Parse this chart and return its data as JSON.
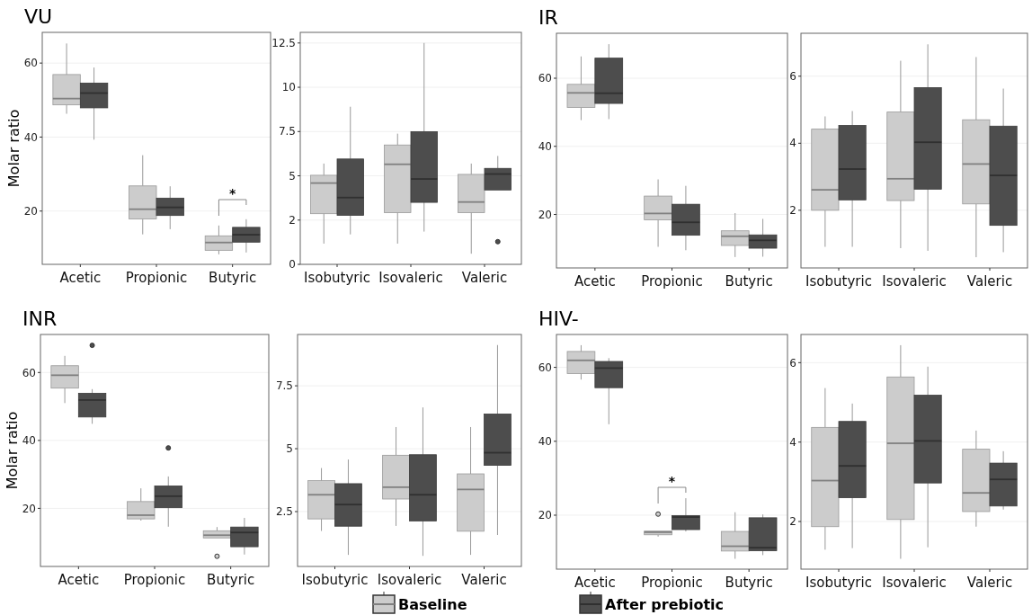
{
  "chart_data": [
    {
      "type": "box",
      "title": "VU",
      "ylabel": "Molar ratio",
      "categories": [
        "Acetic",
        "Propionic",
        "Butyric"
      ],
      "ylim": [
        5.6,
        68.3
      ],
      "yticks": [
        20,
        40,
        60
      ],
      "grid": "y",
      "legend": "bottom",
      "annotations": [
        "*"
      ],
      "series": [
        {
          "name": "Baseline",
          "color": "#cccccc",
          "boxes": [
            {
              "low": 46.3,
              "q1": 48.7,
              "median": 50.4,
              "q3": 56.9,
              "high": 65.3
            },
            {
              "low": 13.7,
              "q1": 17.9,
              "median": 20.5,
              "q3": 26.8,
              "high": 35.1
            },
            {
              "low": 8.3,
              "q1": 9.4,
              "median": 11.5,
              "q3": 13.3,
              "high": 16.1
            }
          ]
        },
        {
          "name": "After prebiotic",
          "color": "#4d4d4d",
          "boxes": [
            {
              "low": 39.3,
              "q1": 47.9,
              "median": 51.9,
              "q3": 54.6,
              "high": 58.8
            },
            {
              "low": 15.1,
              "q1": 18.8,
              "median": 21,
              "q3": 23.5,
              "high": 26.7
            },
            {
              "low": 8.8,
              "q1": 11.6,
              "median": 13.6,
              "q3": 15.6,
              "high": 17.8
            }
          ]
        }
      ]
    },
    {
      "type": "box",
      "categories": [
        "Isobutyric",
        "Isovaleric",
        "Valeric"
      ],
      "ylim": [
        0,
        13.1
      ],
      "yticks": [
        0,
        {
          "value": 2.5,
          "label": "2"
        },
        5,
        7.5,
        10,
        12.5
      ],
      "grid": "y",
      "series": [
        {
          "color": "#cccccc",
          "boxes": [
            {
              "low": 1.17,
              "q1": 2.86,
              "median": 4.59,
              "q3": 5.03,
              "high": 5.69
            },
            {
              "low": 1.17,
              "q1": 2.92,
              "median": 5.65,
              "q3": 6.74,
              "high": 7.38
            },
            {
              "low": 0.6,
              "q1": 2.92,
              "median": 3.52,
              "q3": 5.08,
              "high": 5.69
            }
          ]
        },
        {
          "color": "#4d4d4d",
          "boxes": [
            {
              "low": 1.69,
              "q1": 2.77,
              "median": 3.77,
              "q3": 5.95,
              "high": 8.9
            },
            {
              "low": 1.85,
              "q1": 3.5,
              "median": 4.82,
              "q3": 7.49,
              "high": 12.5
            },
            {
              "low": 4.14,
              "q1": 4.2,
              "median": 5.1,
              "q3": 5.42,
              "high": 6.12,
              "outliers": [
                1.28
              ]
            }
          ]
        }
      ]
    },
    {
      "type": "box",
      "title": "IR",
      "categories": [
        "Acetic",
        "Propionic",
        "Butyric"
      ],
      "ylim": [
        4.3,
        73.2
      ],
      "yticks": [
        20,
        40,
        60
      ],
      "grid": "y",
      "series": [
        {
          "color": "#cccccc",
          "boxes": [
            {
              "low": 47.7,
              "q1": 51.4,
              "median": 55.7,
              "q3": 58.2,
              "high": 66.4
            },
            {
              "low": 10.5,
              "q1": 18.4,
              "median": 20.3,
              "q3": 25.4,
              "high": 30.3
            },
            {
              "low": 7.5,
              "q1": 10.9,
              "median": 13.6,
              "q3": 15.2,
              "high": 20.4
            }
          ]
        },
        {
          "color": "#4d4d4d",
          "boxes": [
            {
              "low": 48,
              "q1": 52.6,
              "median": 55.6,
              "q3": 65.9,
              "high": 70
            },
            {
              "low": 9.5,
              "q1": 13.9,
              "median": 17.7,
              "q3": 23,
              "high": 28.4
            },
            {
              "low": 7.6,
              "q1": 10.1,
              "median": 12.4,
              "q3": 14,
              "high": 18.7
            }
          ]
        }
      ]
    },
    {
      "type": "box",
      "categories": [
        "Isobutyric",
        "Isovaleric",
        "Valeric"
      ],
      "ylim": [
        0.28,
        7.28
      ],
      "yticks": [
        2,
        4,
        6
      ],
      "grid": "y",
      "series": [
        {
          "color": "#cccccc",
          "boxes": [
            {
              "low": 0.91,
              "q1": 2,
              "median": 2.61,
              "q3": 4.42,
              "high": 4.8
            },
            {
              "low": 0.87,
              "q1": 2.29,
              "median": 2.94,
              "q3": 4.93,
              "high": 6.46
            },
            {
              "low": 0.6,
              "q1": 2.19,
              "median": 3.38,
              "q3": 4.7,
              "high": 6.57
            }
          ]
        },
        {
          "color": "#4d4d4d",
          "boxes": [
            {
              "low": 0.91,
              "q1": 2.31,
              "median": 3.23,
              "q3": 4.53,
              "high": 4.96
            },
            {
              "low": 0.79,
              "q1": 2.63,
              "median": 4.03,
              "q3": 5.66,
              "high": 6.95
            },
            {
              "low": 0.75,
              "q1": 1.55,
              "median": 3.04,
              "q3": 4.51,
              "high": 5.63
            }
          ]
        }
      ]
    },
    {
      "type": "box",
      "title": "INR",
      "ylabel": "Molar ratio",
      "categories": [
        "Acetic",
        "Propionic",
        "Butyric"
      ],
      "ylim": [
        2.9,
        71.2
      ],
      "yticks": [
        20,
        40,
        60
      ],
      "grid": "y",
      "series": [
        {
          "color": "#cccccc",
          "boxes": [
            {
              "low": 51,
              "q1": 55.4,
              "median": 59.2,
              "q3": 62,
              "high": 64.9
            },
            {
              "low": 16.4,
              "q1": 16.9,
              "median": 18,
              "q3": 22,
              "high": 25.9
            },
            {
              "low": 11.1,
              "q1": 11.3,
              "median": 12.1,
              "q3": 13.4,
              "high": 14.5,
              "outliers": [
                5.9
              ]
            }
          ]
        },
        {
          "color": "#4d4d4d",
          "boxes": [
            {
              "low": 44.9,
              "q1": 46.9,
              "median": 51.9,
              "q3": 53.9,
              "high": 55.1,
              "outliers": [
                68
              ]
            },
            {
              "low": 14.6,
              "q1": 20.2,
              "median": 23.6,
              "q3": 26.6,
              "high": 29.4,
              "outliers": [
                37.8
              ]
            },
            {
              "low": 6.4,
              "q1": 8.7,
              "median": 12.9,
              "q3": 14.5,
              "high": 17.2
            }
          ]
        }
      ]
    },
    {
      "type": "box",
      "categories": [
        "Isobutyric",
        "Isovaleric",
        "Valeric"
      ],
      "ylim": [
        0.32,
        9.54
      ],
      "yticks": [
        2.5,
        5,
        7.5
      ],
      "grid": "y",
      "series": [
        {
          "color": "#cccccc",
          "boxes": [
            {
              "low": 1.73,
              "q1": 2.21,
              "median": 3.17,
              "q3": 3.73,
              "high": 4.23
            },
            {
              "low": 1.93,
              "q1": 3,
              "median": 3.47,
              "q3": 4.74,
              "high": 5.86
            },
            {
              "low": 0.78,
              "q1": 1.72,
              "median": 3.38,
              "q3": 4,
              "high": 5.86
            }
          ]
        },
        {
          "color": "#4d4d4d",
          "boxes": [
            {
              "low": 0.78,
              "q1": 1.92,
              "median": 2.78,
              "q3": 3.61,
              "high": 4.57
            },
            {
              "low": 0.74,
              "q1": 2.13,
              "median": 3.17,
              "q3": 4.76,
              "high": 6.64
            },
            {
              "low": 1.57,
              "q1": 4.34,
              "median": 4.84,
              "q3": 6.38,
              "high": 9.12
            }
          ]
        }
      ]
    },
    {
      "type": "box",
      "title": "HIV-",
      "categories": [
        "Acetic",
        "Propionic",
        "Butyric"
      ],
      "ylim": [
        5.4,
        68.9
      ],
      "yticks": [
        20,
        40,
        60
      ],
      "grid": "y",
      "annotations": [
        "*"
      ],
      "series": [
        {
          "color": "#cccccc",
          "boxes": [
            {
              "low": 56.7,
              "q1": 58.3,
              "median": 61.9,
              "q3": 64.3,
              "high": 66
            },
            {
              "low": 14.2,
              "q1": 14.7,
              "median": 15.4,
              "q3": 15.7,
              "high": 15.9,
              "outliers": [
                20.3
              ]
            },
            {
              "low": 8.2,
              "q1": 10.3,
              "median": 11.6,
              "q3": 15.6,
              "high": 20.8
            }
          ]
        },
        {
          "color": "#4d4d4d",
          "boxes": [
            {
              "low": 44.6,
              "q1": 54.5,
              "median": 59.8,
              "q3": 61.6,
              "high": 62.5
            },
            {
              "low": 15.6,
              "q1": 16.1,
              "median": 19.5,
              "q3": 19.9,
              "high": 24.6
            },
            {
              "low": 9.2,
              "q1": 10.4,
              "median": 11.2,
              "q3": 19.3,
              "high": 20.2
            }
          ]
        }
      ]
    },
    {
      "type": "box",
      "categories": [
        "Isobutyric",
        "Isovaleric",
        "Valeric"
      ],
      "ylim": [
        0.8,
        6.71
      ],
      "yticks": [
        2,
        4,
        6
      ],
      "grid": "y",
      "series": [
        {
          "color": "#cccccc",
          "boxes": [
            {
              "low": 1.29,
              "q1": 1.87,
              "median": 3.03,
              "q3": 4.37,
              "high": 5.36
            },
            {
              "low": 1.06,
              "q1": 2.05,
              "median": 3.97,
              "q3": 5.64,
              "high": 6.44
            },
            {
              "low": 1.87,
              "q1": 2.25,
              "median": 2.72,
              "q3": 3.82,
              "high": 4.29
            }
          ]
        },
        {
          "color": "#4d4d4d",
          "boxes": [
            {
              "low": 1.33,
              "q1": 2.6,
              "median": 3.4,
              "q3": 4.52,
              "high": 4.97
            },
            {
              "low": 1.35,
              "q1": 2.97,
              "median": 4.03,
              "q3": 5.18,
              "high": 5.9
            },
            {
              "low": 2.3,
              "q1": 2.39,
              "median": 3.06,
              "q3": 3.47,
              "high": 3.77
            }
          ]
        }
      ]
    }
  ]
}
